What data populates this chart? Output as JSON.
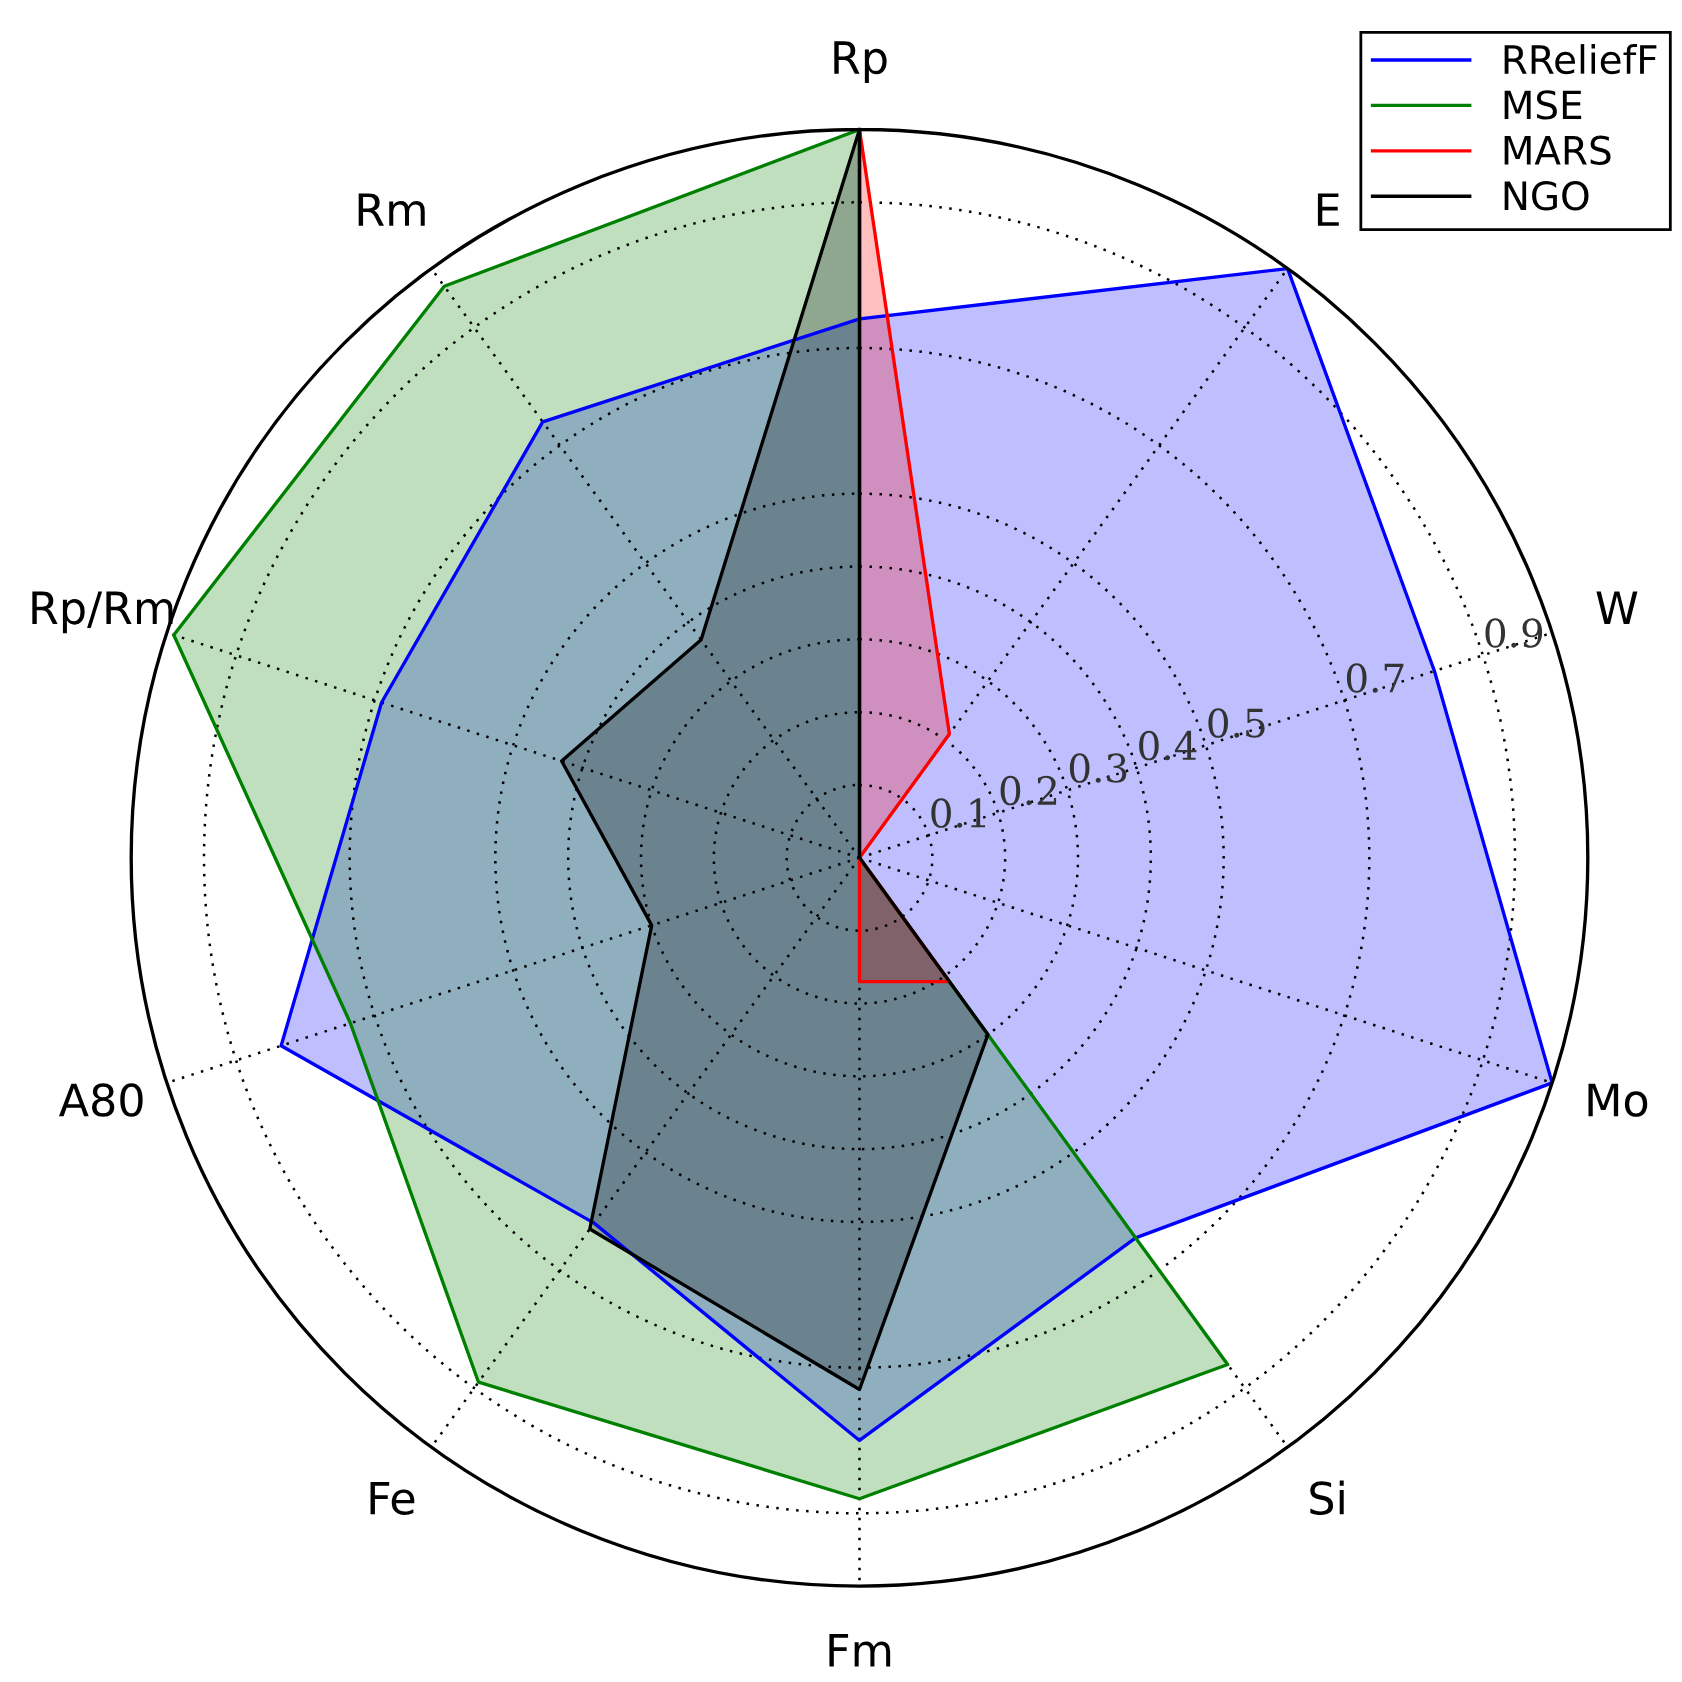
{
  "chart_data": {
    "type": "radar",
    "categories": [
      "Rp",
      "E",
      "W",
      "Mo",
      "Si",
      "Fm",
      "Fe",
      "A80",
      "Rp/Rm",
      "Rm"
    ],
    "series": [
      {
        "name": "RReliefF",
        "color": "#0000ff",
        "values": [
          0.74,
          1.0,
          0.83,
          1.0,
          0.645,
          0.8,
          0.62,
          0.835,
          0.69,
          0.74
        ]
      },
      {
        "name": "MSE",
        "color": "#008000",
        "values": [
          1.0,
          0,
          0,
          0,
          0.86,
          0.88,
          0.89,
          0.735,
          0.99,
          0.97
        ]
      },
      {
        "name": "MARS",
        "color": "#ff0000",
        "values": [
          1.0,
          0.21,
          0,
          0,
          0.21,
          0.17,
          0,
          0,
          0,
          0
        ]
      },
      {
        "name": "NGO",
        "color": "#000000",
        "values": [
          1.0,
          0,
          0,
          0,
          0.3,
          0.73,
          0.63,
          0.3,
          0.43,
          0.37
        ]
      }
    ],
    "ylim": [
      0,
      1
    ],
    "yticks": [
      0.1,
      0.2,
      0.3,
      0.4,
      0.5,
      0.7,
      0.9
    ],
    "grid": true,
    "legend": "top right"
  }
}
